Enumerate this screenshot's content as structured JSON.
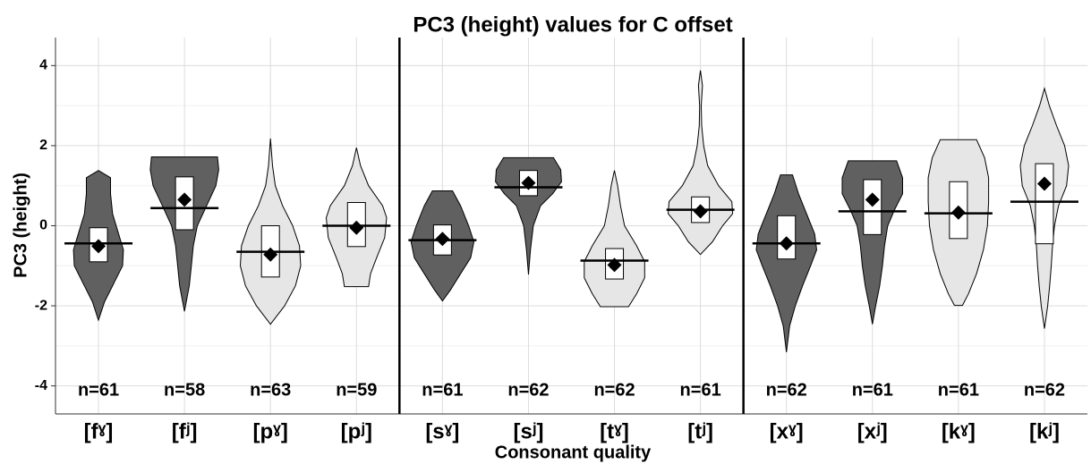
{
  "chart_data": {
    "type": "violin",
    "title": "PC3 (height) values for C offset",
    "xlabel": "Consonant quality",
    "ylabel": "PC3 (height)",
    "categories": [
      "[fˠ]",
      "[fʲ]",
      "[pˠ]",
      "[pʲ]",
      "[sˠ]",
      "[sʲ]",
      "[tˠ]",
      "[tʲ]",
      "[xˠ]",
      "[xʲ]",
      "[kˠ]",
      "[kʲ]"
    ],
    "n_labels": [
      "n=61",
      "n=58",
      "n=63",
      "n=59",
      "n=61",
      "n=62",
      "n=62",
      "n=61",
      "n=62",
      "n=61",
      "n=61",
      "n=62"
    ],
    "violins": [
      {
        "fill": "#606060",
        "profile": [
          [
            1.38,
            0
          ],
          [
            1.2,
            0.3
          ],
          [
            0.8,
            0.3
          ],
          [
            0.3,
            0.35
          ],
          [
            -0.2,
            0.5
          ],
          [
            -0.6,
            0.62
          ],
          [
            -1.0,
            0.6
          ],
          [
            -1.4,
            0.4
          ],
          [
            -1.9,
            0.15
          ],
          [
            -2.36,
            0
          ]
        ],
        "q1": -0.9,
        "q3": -0.05,
        "median": -0.44,
        "mean": -0.51
      },
      {
        "fill": "#606060",
        "profile": [
          [
            1.72,
            0.82
          ],
          [
            1.4,
            0.85
          ],
          [
            1.0,
            0.78
          ],
          [
            0.5,
            0.55
          ],
          [
            0,
            0.32
          ],
          [
            -0.5,
            0.22
          ],
          [
            -1.0,
            0.17
          ],
          [
            -1.5,
            0.12
          ],
          [
            -2.14,
            0
          ]
        ],
        "q1": -0.1,
        "q3": 1.22,
        "median": 0.44,
        "mean": 0.65
      },
      {
        "fill": "#e6e6e6",
        "profile": [
          [
            2.18,
            0
          ],
          [
            1.5,
            0.05
          ],
          [
            1.0,
            0.12
          ],
          [
            0.5,
            0.3
          ],
          [
            0,
            0.55
          ],
          [
            -0.5,
            0.72
          ],
          [
            -1.0,
            0.75
          ],
          [
            -1.5,
            0.62
          ],
          [
            -2.0,
            0.35
          ],
          [
            -2.46,
            0
          ]
        ],
        "q1": -1.28,
        "q3": 0.0,
        "median": -0.65,
        "mean": -0.72
      },
      {
        "fill": "#e6e6e6",
        "profile": [
          [
            1.95,
            0
          ],
          [
            1.5,
            0.1
          ],
          [
            1.0,
            0.3
          ],
          [
            0.5,
            0.65
          ],
          [
            0.2,
            0.75
          ],
          [
            -0.3,
            0.7
          ],
          [
            -0.8,
            0.5
          ],
          [
            -1.2,
            0.35
          ],
          [
            -1.52,
            0.3
          ]
        ],
        "q1": -0.52,
        "q3": 0.58,
        "median": 0.0,
        "mean": -0.05
      },
      {
        "fill": "#606060",
        "profile": [
          [
            0.87,
            0.25
          ],
          [
            0.5,
            0.45
          ],
          [
            0,
            0.65
          ],
          [
            -0.4,
            0.78
          ],
          [
            -0.8,
            0.7
          ],
          [
            -1.2,
            0.45
          ],
          [
            -1.6,
            0.2
          ],
          [
            -1.88,
            0
          ]
        ],
        "q1": -0.73,
        "q3": 0.02,
        "median": -0.36,
        "mean": -0.33
      },
      {
        "fill": "#606060",
        "profile": [
          [
            1.7,
            0.62
          ],
          [
            1.4,
            0.8
          ],
          [
            1.1,
            0.82
          ],
          [
            0.8,
            0.6
          ],
          [
            0.5,
            0.3
          ],
          [
            0,
            0.12
          ],
          [
            -0.6,
            0.05
          ],
          [
            -1.22,
            0
          ]
        ],
        "q1": 0.75,
        "q3": 1.38,
        "median": 0.96,
        "mean": 1.07
      },
      {
        "fill": "#e6e6e6",
        "profile": [
          [
            1.38,
            0
          ],
          [
            1.0,
            0.08
          ],
          [
            0.5,
            0.15
          ],
          [
            0,
            0.25
          ],
          [
            -0.5,
            0.55
          ],
          [
            -0.9,
            0.75
          ],
          [
            -1.3,
            0.75
          ],
          [
            -1.7,
            0.55
          ],
          [
            -2.02,
            0.35
          ]
        ],
        "q1": -1.33,
        "q3": -0.57,
        "median": -0.87,
        "mean": -0.98
      },
      {
        "fill": "#e6e6e6",
        "profile": [
          [
            3.88,
            0
          ],
          [
            3.5,
            0.05
          ],
          [
            3.0,
            0.02
          ],
          [
            2.5,
            0.03
          ],
          [
            2.0,
            0.08
          ],
          [
            1.5,
            0.18
          ],
          [
            1.0,
            0.45
          ],
          [
            0.6,
            0.78
          ],
          [
            0.3,
            0.8
          ],
          [
            0,
            0.55
          ],
          [
            -0.4,
            0.3
          ],
          [
            -0.72,
            0
          ]
        ],
        "q1": 0.08,
        "q3": 0.72,
        "median": 0.4,
        "mean": 0.36
      },
      {
        "fill": "#606060",
        "profile": [
          [
            1.27,
            0.15
          ],
          [
            0.8,
            0.3
          ],
          [
            0.3,
            0.5
          ],
          [
            -0.2,
            0.7
          ],
          [
            -0.6,
            0.75
          ],
          [
            -1.0,
            0.6
          ],
          [
            -1.5,
            0.4
          ],
          [
            -2.0,
            0.22
          ],
          [
            -2.5,
            0.08
          ],
          [
            -3.16,
            0
          ]
        ],
        "q1": -0.83,
        "q3": 0.25,
        "median": -0.44,
        "mean": -0.44
      },
      {
        "fill": "#606060",
        "profile": [
          [
            1.62,
            0.6
          ],
          [
            1.2,
            0.75
          ],
          [
            0.8,
            0.75
          ],
          [
            0.4,
            0.55
          ],
          [
            0,
            0.38
          ],
          [
            -0.5,
            0.3
          ],
          [
            -1.0,
            0.25
          ],
          [
            -1.5,
            0.18
          ],
          [
            -2.0,
            0.08
          ],
          [
            -2.46,
            0
          ]
        ],
        "q1": -0.22,
        "q3": 1.15,
        "median": 0.36,
        "mean": 0.65
      },
      {
        "fill": "#e6e6e6",
        "profile": [
          [
            2.15,
            0.45
          ],
          [
            1.7,
            0.65
          ],
          [
            1.2,
            0.75
          ],
          [
            0.6,
            0.75
          ],
          [
            0,
            0.72
          ],
          [
            -0.6,
            0.62
          ],
          [
            -1.2,
            0.45
          ],
          [
            -1.7,
            0.25
          ],
          [
            -1.99,
            0.1
          ]
        ],
        "q1": -0.32,
        "q3": 1.1,
        "median": 0.31,
        "mean": 0.33
      },
      {
        "fill": "#e6e6e6",
        "profile": [
          [
            3.43,
            0
          ],
          [
            3.0,
            0.12
          ],
          [
            2.5,
            0.3
          ],
          [
            2.0,
            0.5
          ],
          [
            1.5,
            0.6
          ],
          [
            1.0,
            0.55
          ],
          [
            0.5,
            0.35
          ],
          [
            0,
            0.25
          ],
          [
            -0.5,
            0.2
          ],
          [
            -1.0,
            0.17
          ],
          [
            -1.5,
            0.13
          ],
          [
            -2.0,
            0.08
          ],
          [
            -2.57,
            0
          ]
        ],
        "q1": -0.45,
        "q3": 1.55,
        "median": 0.6,
        "mean": 1.05
      }
    ],
    "ylim": [
      -4.7,
      4.7
    ],
    "yticks": [
      -4,
      -2,
      0,
      2,
      4
    ],
    "yminor": [
      -3,
      -1,
      1,
      3
    ],
    "grid": true
  }
}
